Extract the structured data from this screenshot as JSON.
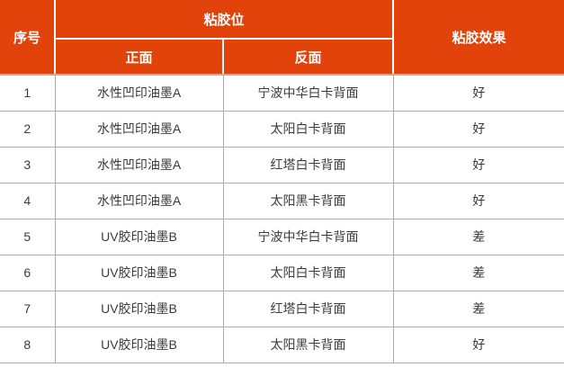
{
  "table": {
    "header": {
      "seq": "序号",
      "position_group": "粘胶位",
      "front": "正面",
      "back": "反面",
      "effect": "粘胶效果"
    },
    "rows": [
      {
        "seq": "1",
        "front": "水性凹印油墨A",
        "back": "宁波中华白卡背面",
        "effect": "好"
      },
      {
        "seq": "2",
        "front": "水性凹印油墨A",
        "back": "太阳白卡背面",
        "effect": "好"
      },
      {
        "seq": "3",
        "front": "水性凹印油墨A",
        "back": "红塔白卡背面",
        "effect": "好"
      },
      {
        "seq": "4",
        "front": "水性凹印油墨A",
        "back": "太阳黑卡背面",
        "effect": "好"
      },
      {
        "seq": "5",
        "front": "UV胶印油墨B",
        "back": "宁波中华白卡背面",
        "effect": "差"
      },
      {
        "seq": "6",
        "front": "UV胶印油墨B",
        "back": "太阳白卡背面",
        "effect": "差"
      },
      {
        "seq": "7",
        "front": "UV胶印油墨B",
        "back": "红塔白卡背面",
        "effect": "差"
      },
      {
        "seq": "8",
        "front": "UV胶印油墨B",
        "back": "太阳黑卡背面",
        "effect": "好"
      }
    ],
    "colors": {
      "header_bg": "#E2430B",
      "header_text": "#FFFFFF",
      "header_divider": "#FFFFFF",
      "header_bottom_line": "#F2997F",
      "body_grid": "#ABABAB",
      "body_text": "#3B3B3B"
    }
  }
}
